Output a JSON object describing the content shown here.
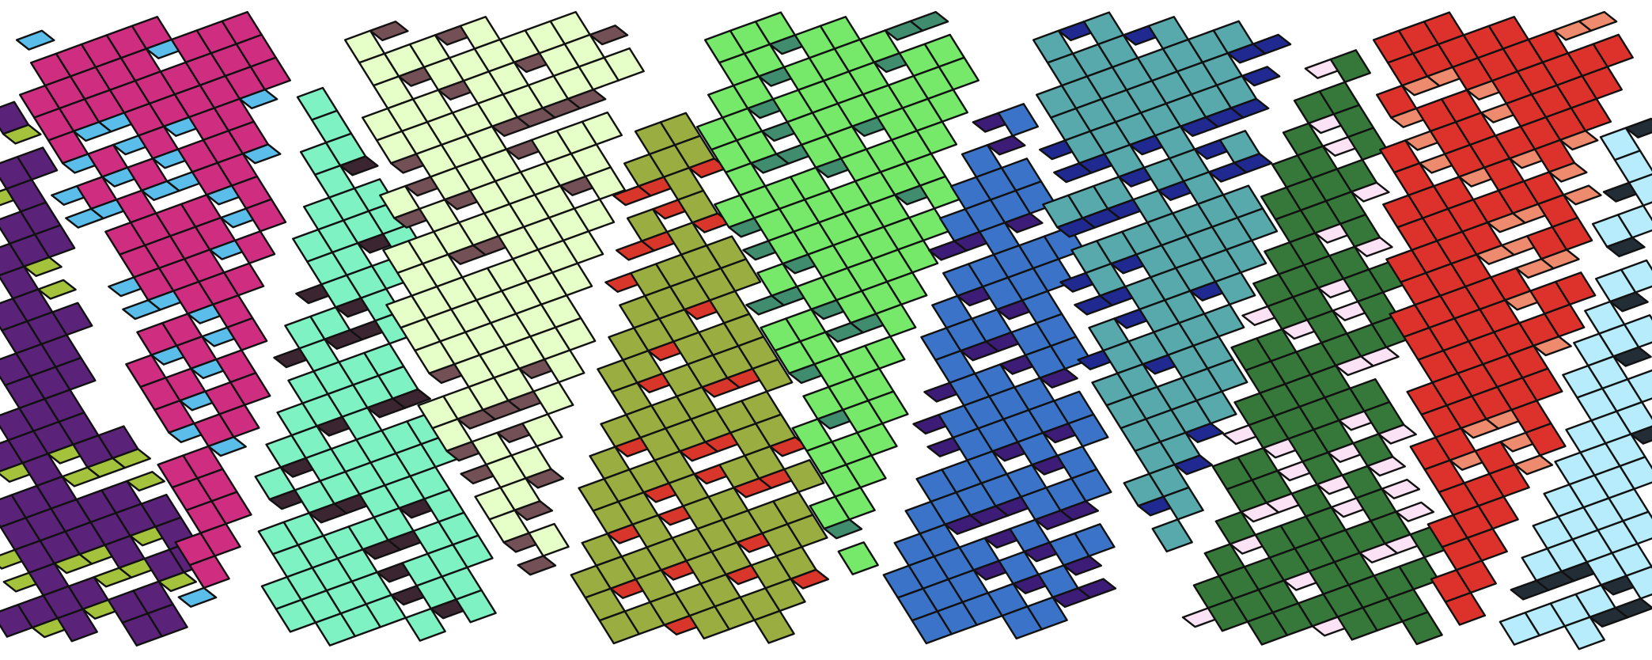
{
  "image": {
    "description_key": "penrose-rhombus-tiling-strips",
    "background": "#ffffff",
    "outline_color": "#111111"
  },
  "strips": [
    {
      "name": "strip-purple",
      "main": "#5b2279",
      "accent": "#a4c23c"
    },
    {
      "name": "strip-magenta",
      "main": "#cf2d80",
      "accent": "#5bbdea"
    },
    {
      "name": "strip-mint",
      "main": "#7ff2c4",
      "accent": "#3b2530"
    },
    {
      "name": "strip-pale-yellow",
      "main": "#e6ffc8",
      "accent": "#735056"
    },
    {
      "name": "strip-olive",
      "main": "#9aad41",
      "accent": "#d8362a"
    },
    {
      "name": "strip-light-green",
      "main": "#76e86a",
      "accent": "#3f8c6e"
    },
    {
      "name": "strip-blue",
      "main": "#3b73c8",
      "accent": "#3d1c78"
    },
    {
      "name": "strip-teal",
      "main": "#57a9ab",
      "accent": "#1f2990"
    },
    {
      "name": "strip-dark-green",
      "main": "#36783a",
      "accent": "#fbe2f5"
    },
    {
      "name": "strip-red",
      "main": "#dd322b",
      "accent": "#ee8a6e"
    },
    {
      "name": "strip-light-blue",
      "main": "#b6ecfb",
      "accent": "#232d35"
    }
  ]
}
